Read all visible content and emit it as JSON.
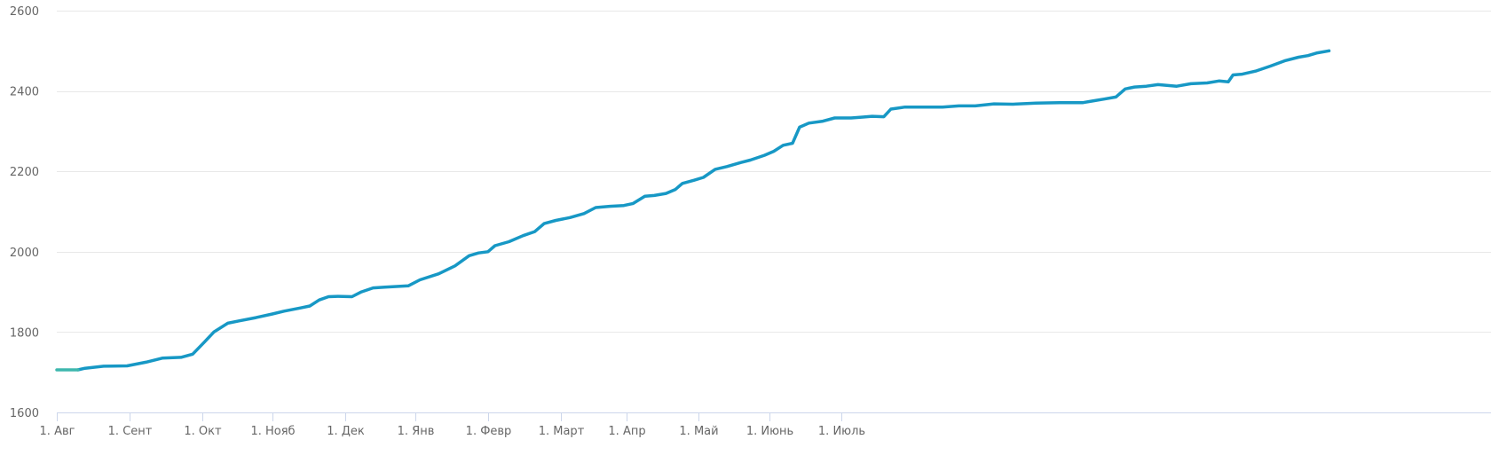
{
  "chart_data": {
    "type": "line",
    "title": "",
    "xlabel": "",
    "ylabel": "",
    "x_tick_labels": [
      "1. Авг",
      "1. Сент",
      "1. Окт",
      "1. Нояб",
      "1. Дек",
      "1. Янв",
      "1. Февр",
      "1. Март",
      "1. Апр",
      "1. Май",
      "1. Июнь",
      "1. Июль"
    ],
    "y_ticks": [
      1600,
      1800,
      2000,
      2200,
      2400,
      2600
    ],
    "ylim": [
      1600,
      2600
    ],
    "grid": true,
    "legend": "none",
    "colors": {
      "line": "#1798c5",
      "line_start": "#3db7ad",
      "grid": "#e8e8e8",
      "axis": "#ccd6eb",
      "tick_text": "#666666"
    },
    "series": [
      {
        "values": [
          [
            0,
            1706
          ],
          [
            9,
            1706
          ],
          [
            12,
            1710
          ],
          [
            20,
            1715
          ],
          [
            30,
            1716
          ],
          [
            38,
            1725
          ],
          [
            45,
            1735
          ],
          [
            53,
            1737
          ],
          [
            58,
            1745
          ],
          [
            63,
            1775
          ],
          [
            67,
            1800
          ],
          [
            73,
            1822
          ],
          [
            78,
            1828
          ],
          [
            85,
            1836
          ],
          [
            92,
            1845
          ],
          [
            97,
            1852
          ],
          [
            104,
            1860
          ],
          [
            108,
            1865
          ],
          [
            112,
            1880
          ],
          [
            116,
            1888
          ],
          [
            120,
            1889
          ],
          [
            126,
            1888
          ],
          [
            130,
            1900
          ],
          [
            135,
            1910
          ],
          [
            140,
            1912
          ],
          [
            150,
            1915
          ],
          [
            155,
            1930
          ],
          [
            163,
            1945
          ],
          [
            170,
            1965
          ],
          [
            176,
            1990
          ],
          [
            180,
            1997
          ],
          [
            184,
            2000
          ],
          [
            187,
            2015
          ],
          [
            193,
            2025
          ],
          [
            199,
            2040
          ],
          [
            204,
            2050
          ],
          [
            208,
            2070
          ],
          [
            213,
            2078
          ],
          [
            219,
            2085
          ],
          [
            225,
            2095
          ],
          [
            230,
            2110
          ],
          [
            236,
            2113
          ],
          [
            242,
            2115
          ],
          [
            246,
            2120
          ],
          [
            251,
            2138
          ],
          [
            255,
            2140
          ],
          [
            260,
            2145
          ],
          [
            264,
            2155
          ],
          [
            267,
            2170
          ],
          [
            272,
            2178
          ],
          [
            276,
            2185
          ],
          [
            281,
            2205
          ],
          [
            286,
            2212
          ],
          [
            292,
            2222
          ],
          [
            296,
            2228
          ],
          [
            302,
            2240
          ],
          [
            306,
            2250
          ],
          [
            310,
            2265
          ],
          [
            314,
            2270
          ],
          [
            317,
            2310
          ],
          [
            321,
            2320
          ],
          [
            327,
            2325
          ],
          [
            332,
            2333
          ],
          [
            339,
            2333
          ],
          [
            344,
            2335
          ],
          [
            348,
            2337
          ],
          [
            353,
            2336
          ],
          [
            356,
            2355
          ],
          [
            362,
            2360
          ],
          [
            370,
            2360
          ],
          [
            378,
            2360
          ],
          [
            385,
            2363
          ],
          [
            392,
            2363
          ],
          [
            400,
            2368
          ],
          [
            408,
            2367
          ],
          [
            418,
            2370
          ],
          [
            428,
            2371
          ],
          [
            438,
            2371
          ],
          [
            442,
            2375
          ],
          [
            447,
            2380
          ],
          [
            452,
            2385
          ],
          [
            456,
            2405
          ],
          [
            460,
            2410
          ],
          [
            465,
            2412
          ],
          [
            470,
            2416
          ],
          [
            478,
            2412
          ],
          [
            484,
            2418
          ],
          [
            491,
            2420
          ],
          [
            496,
            2425
          ],
          [
            500,
            2423
          ],
          [
            502,
            2440
          ],
          [
            506,
            2442
          ],
          [
            512,
            2450
          ],
          [
            518,
            2462
          ],
          [
            524,
            2475
          ],
          [
            530,
            2484
          ],
          [
            534,
            2488
          ],
          [
            538,
            2495
          ],
          [
            543,
            2500
          ]
        ]
      }
    ]
  }
}
